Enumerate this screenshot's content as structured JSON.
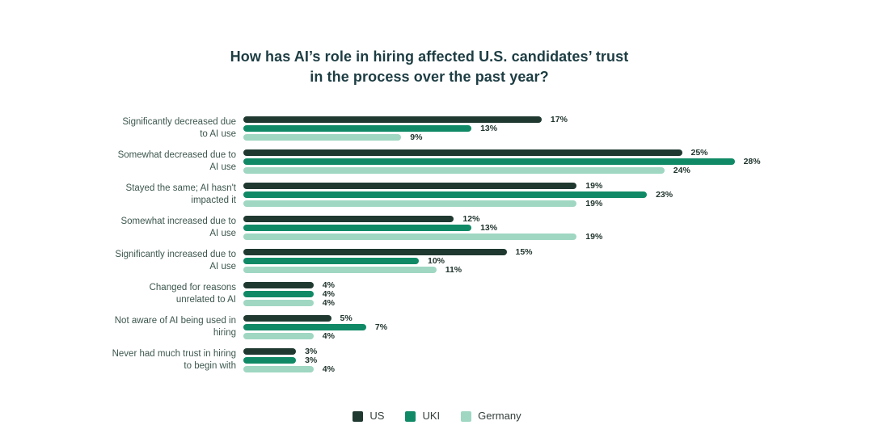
{
  "chart_data": {
    "type": "bar",
    "orientation": "horizontal",
    "title": "How has AI’s role in hiring affected U.S. candidates’ trust\nin the process over the past year?",
    "categories": [
      "Significantly decreased due\nto AI use",
      "Somewhat decreased due to\nAI use",
      "Stayed the same; AI hasn't\nimpacted it",
      "Somewhat increased due to\nAI use",
      "Significantly increased due to\nAI use",
      "Changed for reasons\nunrelated to AI",
      "Not aware of AI being used in\nhiring",
      "Never had much trust in hiring\nto begin with"
    ],
    "series": [
      {
        "name": "US",
        "color": "#1f3931",
        "values": [
          17,
          25,
          19,
          12,
          15,
          4,
          5,
          3
        ]
      },
      {
        "name": "UKI",
        "color": "#108a66",
        "values": [
          13,
          28,
          23,
          13,
          10,
          4,
          7,
          3
        ]
      },
      {
        "name": "Germany",
        "color": "#9fd7c2",
        "values": [
          9,
          24,
          19,
          19,
          11,
          4,
          4,
          4
        ]
      }
    ],
    "value_suffix": "%",
    "xlim": [
      0,
      30
    ],
    "grid": false,
    "legend_position": "bottom",
    "background": "#ffffff"
  }
}
